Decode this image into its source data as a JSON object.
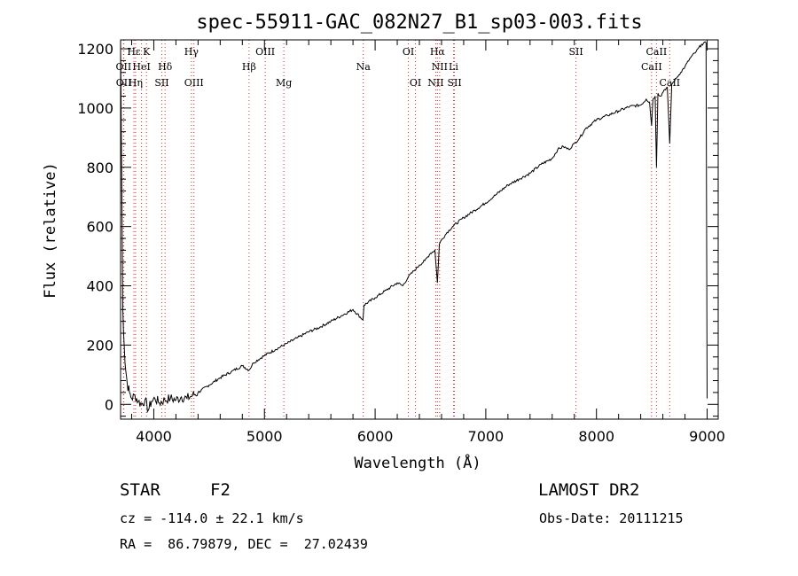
{
  "chart_data": {
    "type": "line",
    "title": "spec-55911-GAC_082N27_B1_sp03-003.fits",
    "xlabel": "Wavelength (Å)",
    "ylabel": "Flux (relative)",
    "xlim": [
      3700,
      9100
    ],
    "ylim": [
      -50,
      1230
    ],
    "xticks": [
      4000,
      5000,
      6000,
      7000,
      8000,
      9000
    ],
    "yticks": [
      0,
      200,
      400,
      600,
      800,
      1000,
      1200
    ],
    "grid": false,
    "series": [
      {
        "color": "#000000",
        "x": [
          3700,
          3720,
          3740,
          3760,
          3780,
          3800,
          3830,
          3860,
          3890,
          3920,
          3950,
          3980,
          4010,
          4050,
          4100,
          4150,
          4200,
          4250,
          4300,
          4350,
          4400,
          4500,
          4600,
          4700,
          4800,
          4861,
          4900,
          5000,
          5100,
          5200,
          5300,
          5400,
          5500,
          5600,
          5700,
          5800,
          5890,
          5900,
          6000,
          6100,
          6200,
          6250,
          6300,
          6350,
          6400,
          6450,
          6500,
          6540,
          6563,
          6580,
          6600,
          6650,
          6700,
          6800,
          6900,
          7000,
          7100,
          7200,
          7300,
          7400,
          7500,
          7600,
          7650,
          7700,
          7750,
          7800,
          7850,
          7900,
          8000,
          8100,
          8200,
          8300,
          8400,
          8450,
          8480,
          8498,
          8510,
          8530,
          8542,
          8555,
          8580,
          8610,
          8640,
          8662,
          8680,
          8720,
          8760,
          8800,
          8850,
          8900,
          8950,
          8990,
          9000
        ],
        "y": [
          1220,
          320,
          140,
          70,
          40,
          20,
          30,
          10,
          0,
          15,
          -20,
          10,
          20,
          5,
          15,
          20,
          15,
          25,
          20,
          30,
          40,
          65,
          90,
          110,
          130,
          115,
          140,
          165,
          185,
          205,
          225,
          245,
          260,
          280,
          300,
          320,
          285,
          335,
          360,
          385,
          410,
          400,
          430,
          450,
          470,
          485,
          510,
          520,
          410,
          540,
          555,
          580,
          600,
          630,
          655,
          680,
          710,
          740,
          760,
          780,
          810,
          830,
          860,
          870,
          860,
          880,
          900,
          930,
          960,
          975,
          990,
          1005,
          1010,
          1030,
          1020,
          940,
          1030,
          1040,
          800,
          1050,
          1040,
          1060,
          1070,
          880,
          1080,
          1100,
          1120,
          1140,
          1170,
          1190,
          1215,
          1220,
          20
        ]
      }
    ],
    "lines": [
      {
        "label": "Hα",
        "x": 6563,
        "row": 1,
        "color": "#d62728"
      },
      {
        "label": "NII",
        "x": 6583,
        "row": 2,
        "color": "#d62728"
      },
      {
        "label": "NII",
        "x": 6548,
        "row": 3,
        "color": "#d62728"
      },
      {
        "label": "SII",
        "x": 6717,
        "row": 3,
        "color": "#d62728"
      },
      {
        "label": "Li",
        "x": 6708,
        "row": 2,
        "color": "#d62728"
      },
      {
        "label": "OI",
        "x": 6300,
        "row": 1,
        "color": "#d62728"
      },
      {
        "label": "OI",
        "x": 6364,
        "row": 3,
        "color": "#d62728"
      },
      {
        "label": "Na",
        "x": 5893,
        "row": 2,
        "color": "#d62728"
      },
      {
        "label": "Mg",
        "x": 5175,
        "row": 3,
        "color": "#d62728"
      },
      {
        "label": "OIII",
        "x": 5007,
        "row": 1,
        "color": "#d62728"
      },
      {
        "label": "Hβ",
        "x": 4861,
        "row": 2,
        "color": "#d62728"
      },
      {
        "label": "OIII",
        "x": 4363,
        "row": 3,
        "color": "#d62728"
      },
      {
        "label": "Hγ",
        "x": 4340,
        "row": 1,
        "color": "#d62728"
      },
      {
        "label": "Hδ",
        "x": 4102,
        "row": 2,
        "color": "#d62728"
      },
      {
        "label": "SII",
        "x": 4072,
        "row": 3,
        "color": "#d62728"
      },
      {
        "label": "K",
        "x": 3934,
        "row": 1,
        "color": "#d62728"
      },
      {
        "label": "HeI",
        "x": 3889,
        "row": 2,
        "color": "#d62728"
      },
      {
        "label": "Hη",
        "x": 3835,
        "row": 3,
        "color": "#d62728"
      },
      {
        "label": "Hε",
        "x": 3820,
        "row": 1,
        "color": "#d62728"
      },
      {
        "label": "OII",
        "x": 3727,
        "row": 2,
        "color": "#d62728"
      },
      {
        "label": "OII",
        "x": 3729,
        "row": 3,
        "color": "#d62728"
      },
      {
        "label": "SII",
        "x": 7815,
        "row": 1,
        "color": "#d62728"
      },
      {
        "label": "CaII",
        "x": 8498,
        "row": 2,
        "color": "#d62728"
      },
      {
        "label": "CaII",
        "x": 8542,
        "row": 1,
        "color": "#d62728"
      },
      {
        "label": "CaII",
        "x": 8662,
        "row": 3,
        "color": "#d62728"
      }
    ]
  },
  "info": {
    "class": "STAR",
    "subclass": "F2",
    "survey": "LAMOST DR2",
    "cz": "cz = -114.0 ± 22.1 km/s",
    "obs_date": "Obs-Date: 20111215",
    "radec": "RA =  86.79879, DEC =  27.02439"
  }
}
